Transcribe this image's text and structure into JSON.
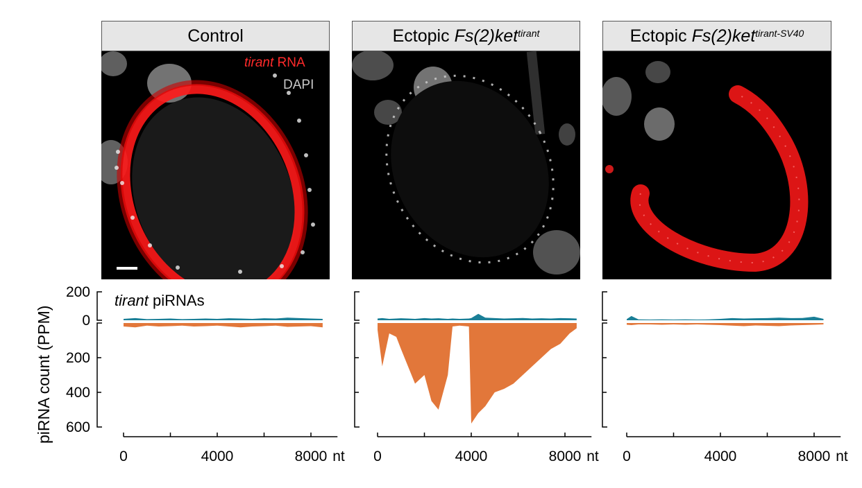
{
  "figure": {
    "panels": [
      {
        "title": "Control",
        "title_italic": "",
        "title_sup": ""
      },
      {
        "title": "Ectopic ",
        "title_italic": "Fs(2)ket",
        "title_sup": "tirant"
      },
      {
        "title": "Ectopic ",
        "title_italic": "Fs(2)ket",
        "title_sup": "tirant-SV40"
      }
    ],
    "overlay": {
      "red_italic": "tirant",
      "red_rest": " RNA",
      "grey": "DAPI"
    },
    "plot_label_italic": "tirant",
    "plot_label_rest": " piRNAs",
    "yaxis_label": "piRNA count (PPM)",
    "x_unit": "nt",
    "colors": {
      "sense": "#1a7f97",
      "antisense": "#e2773a",
      "signal": "#ff1a1a"
    }
  },
  "chart_data": {
    "type": "area",
    "y_upper_ticks": [
      0,
      200
    ],
    "y_lower_ticks": [
      200,
      400,
      600
    ],
    "x_ticks": [
      0,
      4000,
      8000
    ],
    "xlim": [
      0,
      8600
    ],
    "series_names": [
      "",
      ""
    ],
    "panels": [
      {
        "x": [
          0,
          500,
          1000,
          1500,
          2000,
          2500,
          3000,
          3500,
          4000,
          4500,
          5000,
          5500,
          6000,
          6500,
          7000,
          7500,
          8000,
          8500
        ],
        "sense": [
          10,
          15,
          8,
          10,
          12,
          8,
          10,
          12,
          10,
          14,
          12,
          10,
          14,
          12,
          18,
          15,
          12,
          10
        ],
        "antisense": [
          20,
          25,
          15,
          20,
          18,
          15,
          20,
          18,
          15,
          20,
          25,
          20,
          18,
          15,
          22,
          20,
          18,
          25
        ]
      },
      {
        "x": [
          0,
          200,
          500,
          800,
          1000,
          1300,
          1600,
          2000,
          2300,
          2600,
          3000,
          3200,
          3500,
          3900,
          4000,
          4300,
          4600,
          5000,
          5400,
          5800,
          6200,
          6600,
          7000,
          7400,
          7800,
          8200,
          8500
        ],
        "sense": [
          12,
          15,
          10,
          12,
          14,
          12,
          10,
          15,
          12,
          14,
          10,
          12,
          10,
          12,
          15,
          45,
          18,
          15,
          12,
          14,
          16,
          12,
          14,
          12,
          15,
          14,
          12
        ],
        "antisense": [
          40,
          250,
          60,
          80,
          150,
          250,
          350,
          300,
          450,
          500,
          300,
          20,
          15,
          20,
          580,
          520,
          480,
          400,
          380,
          350,
          300,
          250,
          200,
          150,
          120,
          60,
          30
        ]
      },
      {
        "x": [
          0,
          200,
          500,
          1000,
          1500,
          2000,
          2500,
          3000,
          3500,
          4000,
          4500,
          5000,
          5500,
          6000,
          6500,
          7000,
          7500,
          8000,
          8400
        ],
        "sense": [
          8,
          30,
          6,
          5,
          6,
          5,
          6,
          5,
          6,
          10,
          15,
          12,
          14,
          15,
          18,
          15,
          16,
          25,
          10
        ],
        "antisense": [
          10,
          12,
          8,
          8,
          10,
          8,
          10,
          8,
          10,
          12,
          15,
          18,
          14,
          16,
          18,
          14,
          12,
          10,
          8
        ]
      }
    ]
  }
}
